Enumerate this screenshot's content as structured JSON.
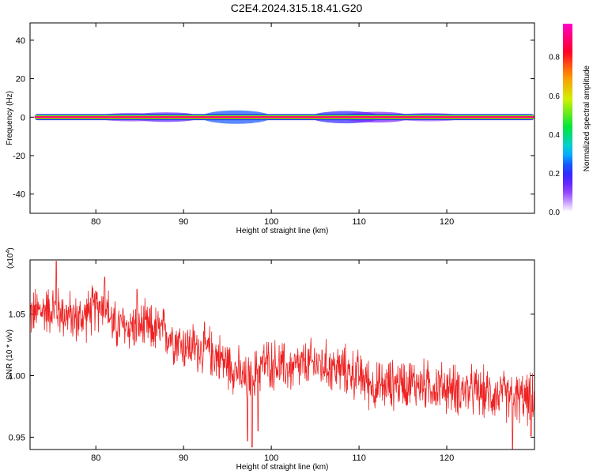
{
  "title": "C2E4.2024.315.18.41.G20",
  "colorbar": {
    "label": "Normalized spectral amplitude",
    "ticks": [
      "0.0",
      "0.2",
      "0.4",
      "0.6",
      "0.8"
    ]
  },
  "chart_data": [
    {
      "type": "heatmap",
      "title": "",
      "xlabel": "Height of straight line (km)",
      "ylabel": "Frequency (Hz)",
      "xlim": [
        72.5,
        130
      ],
      "ylim": [
        -50,
        49
      ],
      "x_ticks": [
        80,
        90,
        100,
        110,
        120
      ],
      "y_ticks": [
        -40,
        -20,
        0,
        20,
        40
      ],
      "y_tick_labels": [
        "-40",
        "-20",
        "0",
        "20",
        "40"
      ],
      "grid": false,
      "colorbar_range": [
        0,
        0.97
      ],
      "bands": [
        {
          "level": 0.2,
          "halfwidth_hz": 1.6
        },
        {
          "level": 0.45,
          "halfwidth_hz": 1.1
        },
        {
          "level": 0.6,
          "halfwidth_hz": 0.8
        },
        {
          "level": 0.85,
          "halfwidth_hz": 0.5
        },
        {
          "level": 0.97,
          "halfwidth_hz": 0.25
        }
      ],
      "x_start": 73,
      "x_end": 130
    },
    {
      "type": "line",
      "title": "",
      "xlabel": "Height of straight line (km)",
      "ylabel": "SNR (10 * v/v)",
      "y_multiplier": "(x10",
      "y_multiplier_exp": "4",
      "xlim": [
        72.5,
        130
      ],
      "ylim": [
        0.94,
        1.094
      ],
      "x_ticks": [
        80,
        90,
        100,
        110,
        120
      ],
      "y_ticks": [
        0.95,
        1.0,
        1.05
      ],
      "y_tick_labels": [
        "0.95",
        "1.00",
        "1.05"
      ],
      "grid": false,
      "series_color": "#ee2222",
      "trend_x": [
        72.5,
        75,
        78,
        80,
        81,
        82,
        85,
        88,
        90,
        93,
        95,
        96,
        97,
        98,
        99,
        100,
        102,
        105,
        108,
        110,
        112,
        115,
        120,
        125,
        130
      ],
      "trend_y": [
        1.05,
        1.055,
        1.045,
        1.055,
        1.06,
        1.04,
        1.04,
        1.035,
        1.025,
        1.02,
        1.01,
        1.005,
        0.995,
        1.0,
        1.01,
        1.01,
        1.005,
        1.01,
        1.005,
        1.0,
        0.99,
        0.995,
        0.99,
        0.985,
        0.98
      ],
      "noise_amplitude": 0.018,
      "spikes": [
        {
          "x": 75.5,
          "y": 1.093
        },
        {
          "x": 81,
          "y": 1.08
        },
        {
          "x": 84.7,
          "y": 1.07
        },
        {
          "x": 97.3,
          "y": 0.947
        },
        {
          "x": 97.8,
          "y": 0.942
        },
        {
          "x": 98.5,
          "y": 0.955
        },
        {
          "x": 127.5,
          "y": 0.94
        },
        {
          "x": 129.6,
          "y": 0.951
        }
      ]
    }
  ]
}
